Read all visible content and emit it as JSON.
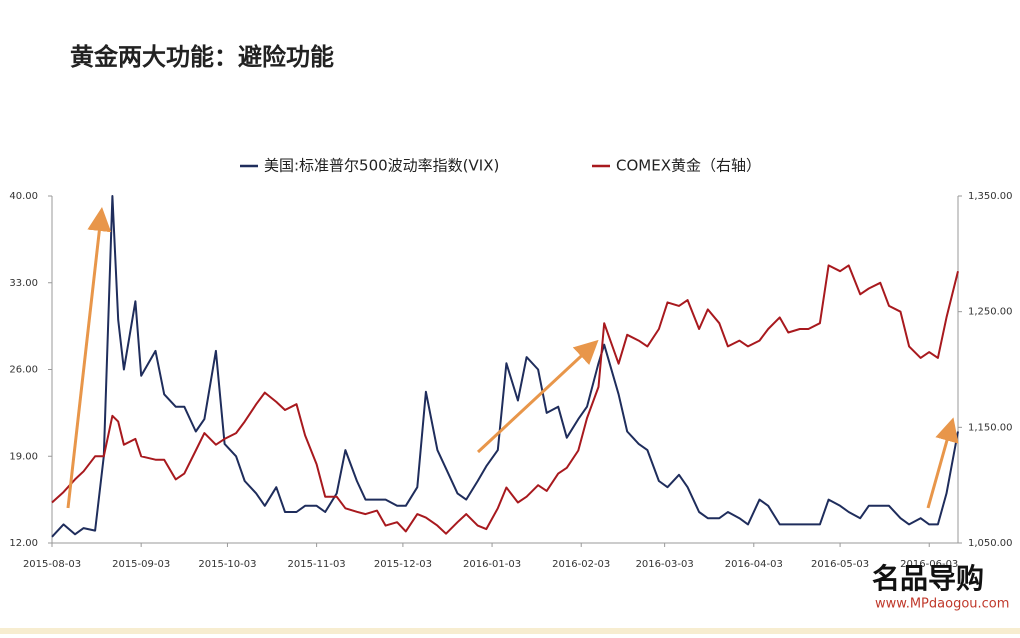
{
  "page_title": "黄金两大功能：避险功能",
  "watermark": "www.MPdaogou.com",
  "watermark_logo": "名品导购",
  "chart_data": {
    "type": "line",
    "x": [
      "2015-08-03",
      "2015-08-07",
      "2015-08-11",
      "2015-08-14",
      "2015-08-18",
      "2015-08-21",
      "2015-08-24",
      "2015-08-26",
      "2015-08-28",
      "2015-09-01",
      "2015-09-03",
      "2015-09-08",
      "2015-09-11",
      "2015-09-15",
      "2015-09-18",
      "2015-09-22",
      "2015-09-25",
      "2015-09-29",
      "2015-10-02",
      "2015-10-06",
      "2015-10-09",
      "2015-10-13",
      "2015-10-16",
      "2015-10-20",
      "2015-10-23",
      "2015-10-27",
      "2015-10-30",
      "2015-11-03",
      "2015-11-06",
      "2015-11-10",
      "2015-11-13",
      "2015-11-17",
      "2015-11-20",
      "2015-11-24",
      "2015-11-27",
      "2015-12-01",
      "2015-12-04",
      "2015-12-08",
      "2015-12-11",
      "2015-12-15",
      "2015-12-18",
      "2015-12-22",
      "2015-12-25",
      "2015-12-29",
      "2016-01-01",
      "2016-01-05",
      "2016-01-08",
      "2016-01-12",
      "2016-01-15",
      "2016-01-19",
      "2016-01-22",
      "2016-01-26",
      "2016-01-29",
      "2016-02-02",
      "2016-02-05",
      "2016-02-09",
      "2016-02-11",
      "2016-02-16",
      "2016-02-19",
      "2016-02-23",
      "2016-02-26",
      "2016-03-01",
      "2016-03-04",
      "2016-03-08",
      "2016-03-11",
      "2016-03-15",
      "2016-03-18",
      "2016-03-22",
      "2016-03-25",
      "2016-03-29",
      "2016-04-01",
      "2016-04-05",
      "2016-04-08",
      "2016-04-12",
      "2016-04-15",
      "2016-04-19",
      "2016-04-22",
      "2016-04-26",
      "2016-04-29",
      "2016-05-03",
      "2016-05-06",
      "2016-05-10",
      "2016-05-13",
      "2016-05-17",
      "2016-05-20",
      "2016-05-24",
      "2016-05-27",
      "2016-05-31",
      "2016-06-03",
      "2016-06-06",
      "2016-06-09",
      "2016-06-13"
    ],
    "series": [
      {
        "name": "美国:标准普尔500波动率指数(VIX)",
        "color": "#1f2d5c",
        "values": [
          12.5,
          13.5,
          12.7,
          13.2,
          13.0,
          19.0,
          40.0,
          30,
          26,
          31.5,
          25.5,
          27.5,
          24,
          23,
          23,
          21,
          22,
          27.5,
          20,
          19,
          17,
          16,
          15,
          16.5,
          14.5,
          14.5,
          15,
          15,
          14.5,
          16,
          19.5,
          17,
          15.5,
          15.5,
          15.5,
          15,
          15,
          16.5,
          24.2,
          19.5,
          18,
          16,
          15.5,
          17,
          18.2,
          19.5,
          26.5,
          23.5,
          27,
          26,
          22.5,
          23,
          20.5,
          22,
          23,
          26.5,
          28,
          24,
          21,
          20,
          19.5,
          17,
          16.5,
          17.5,
          16.5,
          14.5,
          14,
          14,
          14.5,
          14,
          13.5,
          15.5,
          15,
          13.5,
          13.5,
          13.5,
          13.5,
          13.5,
          15.5,
          15,
          14.5,
          14,
          15,
          15,
          15,
          14,
          13.5,
          14,
          13.5,
          13.5,
          16,
          21
        ]
      },
      {
        "name": "COMEX黄金（右轴）",
        "color": "#a8191e",
        "axis": "y2",
        "values": [
          1085,
          1094,
          1105,
          1112,
          1125,
          1125,
          1160,
          1155,
          1135,
          1140,
          1125,
          1122,
          1122,
          1105,
          1110,
          1130,
          1145,
          1135,
          1140,
          1145,
          1155,
          1170,
          1180,
          1172,
          1165,
          1170,
          1143,
          1118,
          1090,
          1090,
          1080,
          1077,
          1075,
          1078,
          1065,
          1068,
          1060,
          1075,
          1072,
          1065,
          1058,
          1068,
          1075,
          1065,
          1062,
          1080,
          1098,
          1085,
          1090,
          1100,
          1095,
          1110,
          1115,
          1130,
          1158,
          1185,
          1240,
          1205,
          1230,
          1225,
          1220,
          1235,
          1258,
          1255,
          1260,
          1235,
          1252,
          1240,
          1220,
          1225,
          1220,
          1225,
          1235,
          1245,
          1232,
          1235,
          1235,
          1240,
          1290,
          1285,
          1290,
          1265,
          1270,
          1275,
          1255,
          1250,
          1220,
          1210,
          1215,
          1210,
          1245,
          1285
        ]
      }
    ],
    "xlim": [
      "2015-08-03",
      "2016-06-13"
    ],
    "xticks": [
      "2015-08-03",
      "2015-09-03",
      "2015-10-03",
      "2015-11-03",
      "2015-12-03",
      "2016-01-03",
      "2016-02-03",
      "2016-03-03",
      "2016-04-03",
      "2016-05-03",
      "2016-06-03"
    ],
    "ylim": [
      12,
      40
    ],
    "yticks": [
      {
        "value": 12,
        "label": "12.00"
      },
      {
        "value": 19,
        "label": "19.00"
      },
      {
        "value": 26,
        "label": "26.00"
      },
      {
        "value": 33,
        "label": "33.00"
      },
      {
        "value": 40,
        "label": "40.00"
      }
    ],
    "y2lim": [
      1050,
      1350
    ],
    "y2ticks": [
      {
        "value": 1050,
        "label": "1,050.00"
      },
      {
        "value": 1150,
        "label": "1,150.00"
      },
      {
        "value": 1250,
        "label": "1,250.00"
      },
      {
        "value": 1350,
        "label": "1,350.00"
      }
    ],
    "grid": false,
    "legend": "top"
  }
}
